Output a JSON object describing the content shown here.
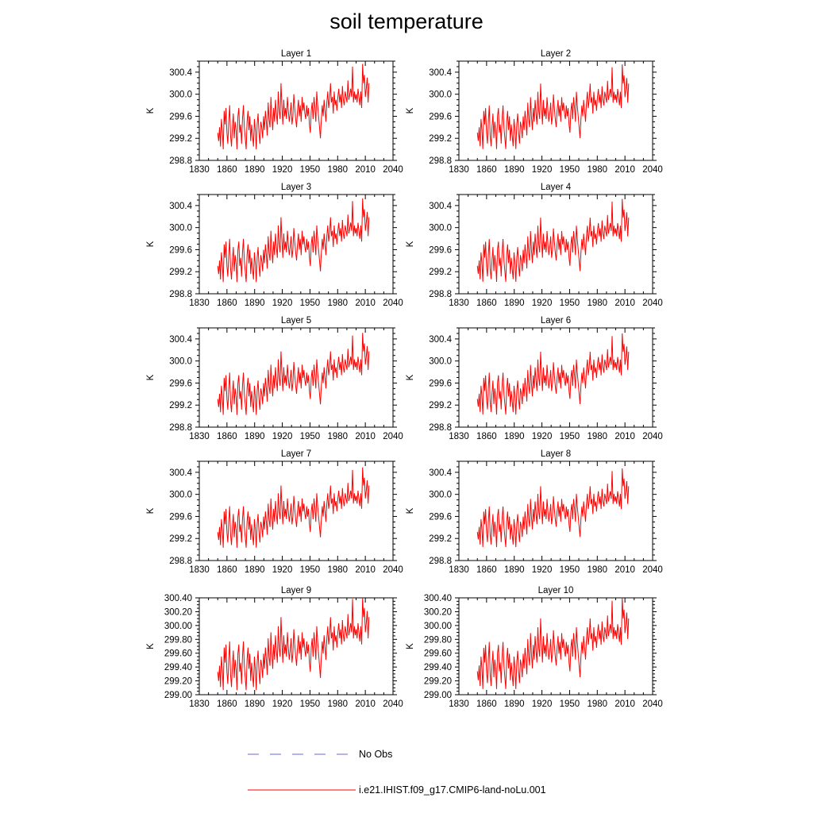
{
  "title": "soil temperature",
  "legend": {
    "entries": [
      {
        "label": "No Obs",
        "color": "#6a6ad8",
        "style": "dashed"
      },
      {
        "label": "i.e21.IHIST.f09_g17.CMIP6-land-noLu.001",
        "color": "#ff0000",
        "style": "solid"
      }
    ]
  },
  "chart_data": {
    "type": "line",
    "ylabel": "K",
    "xticks": [
      1830,
      1860,
      1890,
      1920,
      1950,
      1980,
      2010,
      2040
    ],
    "xlim": [
      1830,
      2040
    ],
    "x_start": 1850,
    "x_end": 2014,
    "line_color": "#ff0000",
    "panels": [
      {
        "title": "Layer 1",
        "ylim": [
          298.8,
          300.6
        ],
        "yticks": [
          "298.8",
          "299.2",
          "299.6",
          "300.0",
          "300.4"
        ],
        "scale": 1.0
      },
      {
        "title": "Layer 2",
        "ylim": [
          298.8,
          300.6
        ],
        "yticks": [
          "298.8",
          "299.2",
          "299.6",
          "300.0",
          "300.4"
        ],
        "scale": 0.99
      },
      {
        "title": "Layer 3",
        "ylim": [
          298.8,
          300.6
        ],
        "yticks": [
          "298.8",
          "299.2",
          "299.6",
          "300.0",
          "300.4"
        ],
        "scale": 0.98
      },
      {
        "title": "Layer 4",
        "ylim": [
          298.8,
          300.6
        ],
        "yticks": [
          "298.8",
          "299.2",
          "299.6",
          "300.0",
          "300.4"
        ],
        "scale": 0.97
      },
      {
        "title": "Layer 5",
        "ylim": [
          298.8,
          300.6
        ],
        "yticks": [
          "298.8",
          "299.2",
          "299.6",
          "300.0",
          "300.4"
        ],
        "scale": 0.96
      },
      {
        "title": "Layer 6",
        "ylim": [
          298.8,
          300.6
        ],
        "yticks": [
          "298.8",
          "299.2",
          "299.6",
          "300.0",
          "300.4"
        ],
        "scale": 0.95
      },
      {
        "title": "Layer 7",
        "ylim": [
          298.8,
          300.6
        ],
        "yticks": [
          "298.8",
          "299.2",
          "299.6",
          "300.0",
          "300.4"
        ],
        "scale": 0.94
      },
      {
        "title": "Layer 8",
        "ylim": [
          298.8,
          300.6
        ],
        "yticks": [
          "298.8",
          "299.2",
          "299.6",
          "300.0",
          "300.4"
        ],
        "scale": 0.92
      },
      {
        "title": "Layer 9",
        "ylim": [
          299.0,
          300.4
        ],
        "yticks": [
          "299.00",
          "299.20",
          "299.40",
          "299.60",
          "299.80",
          "300.00",
          "300.20",
          "300.40"
        ],
        "scale": 0.88
      },
      {
        "title": "Layer 10",
        "ylim": [
          299.0,
          300.4
        ],
        "yticks": [
          "299.00",
          "299.20",
          "299.40",
          "299.60",
          "299.80",
          "300.00",
          "300.20",
          "300.40"
        ],
        "scale": 0.85
      }
    ],
    "base_series": [
      299.3,
      299.15,
      299.4,
      299.05,
      299.55,
      299.35,
      299.0,
      299.7,
      299.45,
      299.75,
      299.3,
      299.1,
      299.5,
      299.8,
      299.25,
      299.05,
      299.4,
      299.65,
      299.2,
      299.5,
      299.35,
      299.0,
      299.6,
      299.75,
      299.3,
      299.45,
      299.1,
      299.55,
      299.8,
      299.4,
      299.2,
      299.0,
      299.5,
      299.7,
      299.35,
      299.6,
      299.15,
      299.45,
      299.25,
      299.05,
      299.55,
      299.35,
      299.0,
      299.45,
      299.65,
      299.3,
      299.1,
      299.5,
      299.4,
      299.2,
      299.6,
      299.35,
      299.7,
      299.5,
      299.25,
      299.85,
      299.55,
      299.4,
      299.95,
      299.6,
      299.35,
      299.75,
      299.5,
      299.9,
      299.65,
      299.45,
      300.05,
      299.7,
      299.55,
      300.2,
      299.8,
      299.45,
      299.9,
      299.6,
      299.75,
      299.55,
      299.95,
      299.7,
      299.5,
      299.65,
      299.85,
      299.45,
      299.6,
      300.0,
      299.75,
      299.55,
      299.4,
      299.7,
      299.9,
      299.6,
      299.8,
      299.5,
      299.95,
      299.7,
      299.85,
      299.65,
      299.55,
      299.8,
      299.6,
      299.75,
      299.45,
      299.3,
      299.7,
      299.85,
      299.55,
      299.95,
      299.75,
      299.5,
      300.05,
      299.8,
      299.6,
      299.4,
      299.2,
      299.55,
      299.8,
      299.6,
      299.9,
      299.7,
      299.5,
      299.85,
      300.05,
      299.75,
      299.9,
      300.2,
      299.85,
      299.95,
      299.65,
      300.05,
      299.8,
      299.9,
      299.7,
      299.95,
      300.1,
      299.85,
      300.0,
      299.75,
      300.15,
      299.9,
      299.8,
      300.05,
      299.95,
      299.85,
      300.25,
      299.9,
      300.0,
      300.1,
      299.95,
      300.5,
      299.85,
      300.05,
      299.9,
      300.0,
      299.85,
      300.1,
      299.95,
      299.8,
      300.05,
      299.75,
      300.55,
      300.2,
      300.35,
      299.95,
      300.1,
      300.3,
      299.85,
      300.2
    ]
  }
}
